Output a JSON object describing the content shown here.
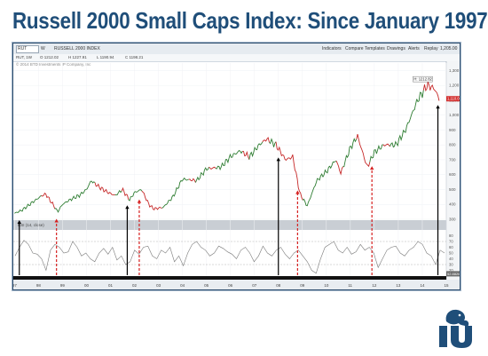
{
  "slide": {
    "title": "Russell 2000 Small Caps Index: Since January 1997"
  },
  "toolbar": {
    "symbol": "RUT",
    "interval": "W",
    "symbol_desc": "RUSSELL 2000 INDEX",
    "buttons": [
      "Indicators",
      "Compare",
      "Templates",
      "Drawings",
      "Alerts",
      "Replay"
    ],
    "price_box": "1,205.00"
  },
  "statusline": {
    "parts": [
      "RUT, 1W",
      "O 1212.02",
      "H 1227.91",
      "L 1190.94",
      "C 1198.21"
    ],
    "rsi": "RSI (14, close)"
  },
  "copyright": "© 2014 BTD Investments IP Company, Inc",
  "chart_data": {
    "type": "line",
    "series": [
      {
        "x": [
          1997.0,
          1997.3,
          1997.8,
          1998.1,
          1998.3,
          1998.6,
          1998.8,
          1999.0,
          1999.3,
          1999.7,
          2000.0,
          2000.2,
          2000.5,
          2000.9,
          2001.2,
          2001.5,
          2001.8,
          2002.0,
          2002.3,
          2002.6,
          2002.8,
          2003.2,
          2003.6,
          2004.0,
          2004.6,
          2005.0,
          2005.6,
          2006.0,
          2006.4,
          2006.8,
          2007.2,
          2007.5,
          2007.9,
          2008.3,
          2008.6,
          2008.9,
          2009.2,
          2009.6,
          2010.0,
          2010.4,
          2010.6,
          2011.0,
          2011.3,
          2011.7,
          2012.0,
          2012.4,
          2012.9,
          2013.3,
          2013.8,
          2014.0,
          2014.2,
          2014.5,
          2014.7
        ],
        "values": [
          340,
          360,
          420,
          455,
          470,
          400,
          350,
          400,
          430,
          460,
          500,
          560,
          520,
          480,
          460,
          500,
          430,
          480,
          500,
          400,
          370,
          380,
          450,
          570,
          560,
          640,
          650,
          720,
          760,
          720,
          800,
          840,
          800,
          700,
          720,
          470,
          390,
          560,
          620,
          700,
          610,
          780,
          860,
          650,
          750,
          800,
          800,
          900,
          1100,
          1150,
          1200,
          1180,
          1110
        ]
      }
    ],
    "annotation": "H: 1212.82",
    "x_tick_labels": [
      "97",
      "98",
      "99",
      "00",
      "01",
      "02",
      "03",
      "04",
      "05",
      "06",
      "07",
      "08",
      "09",
      "10",
      "11",
      "12",
      "13",
      "14",
      "15"
    ],
    "y_tick_labels": [
      {
        "v": 1300,
        "t": "1,300"
      },
      {
        "v": 1200,
        "t": "1,200"
      },
      {
        "v": 1100,
        "t": "1,100"
      },
      {
        "v": 1000,
        "t": "1,000"
      },
      {
        "v": 900,
        "t": "900"
      },
      {
        "v": 800,
        "t": "800"
      },
      {
        "v": 700,
        "t": "700"
      },
      {
        "v": 600,
        "t": "600"
      },
      {
        "v": 500,
        "t": "500"
      },
      {
        "v": 400,
        "t": "400"
      },
      {
        "v": 300,
        "t": "300"
      }
    ],
    "last_price": "1,110.00",
    "ylim": [
      300,
      1350
    ],
    "xlim": [
      1996.95,
      2015.0
    ],
    "rsi": {
      "ylim": [
        10,
        90
      ],
      "y_tick_labels": [
        "80",
        "70",
        "60",
        "50",
        "40",
        "30",
        "20"
      ],
      "reference_lines": [
        70,
        30
      ],
      "value_box": "52.8826",
      "values": [
        45,
        60,
        72,
        65,
        50,
        48,
        40,
        20,
        55,
        65,
        60,
        50,
        52,
        70,
        60,
        45,
        50,
        40,
        35,
        50,
        58,
        48,
        60,
        38,
        45,
        30,
        35,
        55,
        48,
        60,
        62,
        45,
        40,
        55,
        50,
        60,
        35,
        45,
        28,
        50,
        65,
        70,
        60,
        55,
        45,
        50,
        62,
        58,
        52,
        48,
        40,
        55,
        60,
        50,
        35,
        45,
        62,
        50,
        45,
        55,
        60,
        48,
        40,
        50,
        55,
        45,
        35,
        20,
        15,
        40,
        60,
        65,
        70,
        55,
        50,
        60,
        48,
        52,
        65,
        55,
        60,
        50,
        25,
        40,
        55,
        60,
        62,
        50,
        45,
        55,
        60,
        70,
        65,
        50,
        45,
        30,
        55,
        50
      ]
    },
    "signals": [
      {
        "x": 1997.2,
        "color": "#000000",
        "dashed": false
      },
      {
        "x": 1998.75,
        "color": "#d62020",
        "dashed": true
      },
      {
        "x": 2001.7,
        "color": "#000000",
        "dashed": false
      },
      {
        "x": 2002.2,
        "color": "#d62020",
        "dashed": true
      },
      {
        "x": 2008.0,
        "color": "#000000",
        "dashed": false
      },
      {
        "x": 2008.8,
        "color": "#d62020",
        "dashed": true
      },
      {
        "x": 2011.9,
        "color": "#d62020",
        "dashed": true
      },
      {
        "x": 2014.65,
        "color": "#000000",
        "dashed": false
      }
    ]
  }
}
